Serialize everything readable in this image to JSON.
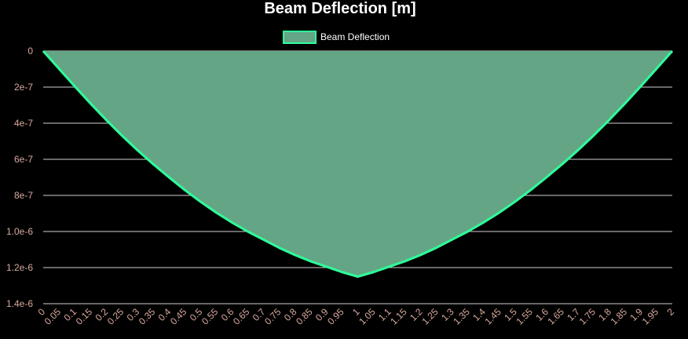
{
  "chart_data": {
    "type": "area",
    "title": "Beam Deflection [m]",
    "xlabel": "",
    "ylabel": "",
    "legend": {
      "position": "top",
      "entries": [
        "Beam Deflection"
      ]
    },
    "grid": {
      "horizontal": true,
      "vertical": false
    },
    "x_ticks": [
      "0",
      "0.05",
      "0.1",
      "0.15",
      "0.2",
      "0.25",
      "0.3",
      "0.35",
      "0.4",
      "0.45",
      "0.5",
      "0.55",
      "0.6",
      "0.65",
      "0.7",
      "0.75",
      "0.8",
      "0.85",
      "0.9",
      "0.95",
      "1",
      "1.05",
      "1.1",
      "1.15",
      "1.2",
      "1.25",
      "1.3",
      "1.35",
      "1.4",
      "1.45",
      "1.5",
      "1.55",
      "1.6",
      "1.65",
      "1.7",
      "1.75",
      "1.8",
      "1.85",
      "1.9",
      "1.95",
      "2"
    ],
    "y_ticks": [
      "0",
      "2e-7",
      "4e-7",
      "6e-7",
      "8e-7",
      "1.0e-6",
      "1.2e-6",
      "1.4e-6"
    ],
    "ylim": [
      0,
      1.4e-06
    ],
    "y_reversed": true,
    "xlim": [
      0,
      2
    ],
    "series": [
      {
        "name": "Beam Deflection",
        "x": [
          0,
          0.05,
          0.1,
          0.15,
          0.2,
          0.25,
          0.3,
          0.35,
          0.4,
          0.45,
          0.5,
          0.55,
          0.6,
          0.65,
          0.7,
          0.75,
          0.8,
          0.85,
          0.9,
          0.95,
          1,
          1.05,
          1.1,
          1.15,
          1.2,
          1.25,
          1.3,
          1.35,
          1.4,
          1.45,
          1.5,
          1.55,
          1.6,
          1.65,
          1.7,
          1.75,
          1.8,
          1.85,
          1.9,
          1.95,
          2
        ],
        "values": [
          0,
          9.8e-08,
          1.95e-07,
          2.9e-07,
          3.81e-07,
          4.68e-07,
          5.5e-07,
          6.27e-07,
          7e-07,
          7.7e-07,
          8.35e-07,
          8.95e-07,
          9.5e-07,
          1e-06,
          1.045e-06,
          1.09e-06,
          1.13e-06,
          1.165e-06,
          1.195e-06,
          1.225e-06,
          1.25e-06,
          1.225e-06,
          1.195e-06,
          1.165e-06,
          1.13e-06,
          1.09e-06,
          1.045e-06,
          1e-06,
          9.5e-07,
          8.95e-07,
          8.35e-07,
          7.7e-07,
          7e-07,
          6.27e-07,
          5.5e-07,
          4.68e-07,
          3.81e-07,
          2.9e-07,
          1.95e-07,
          9.8e-08,
          0
        ]
      }
    ],
    "colors": {
      "line": "#2eff9a",
      "fill": "#64a586",
      "grid": "#cfcfcf",
      "tick_text": "#d9a99f",
      "title": "#ffffff"
    }
  }
}
